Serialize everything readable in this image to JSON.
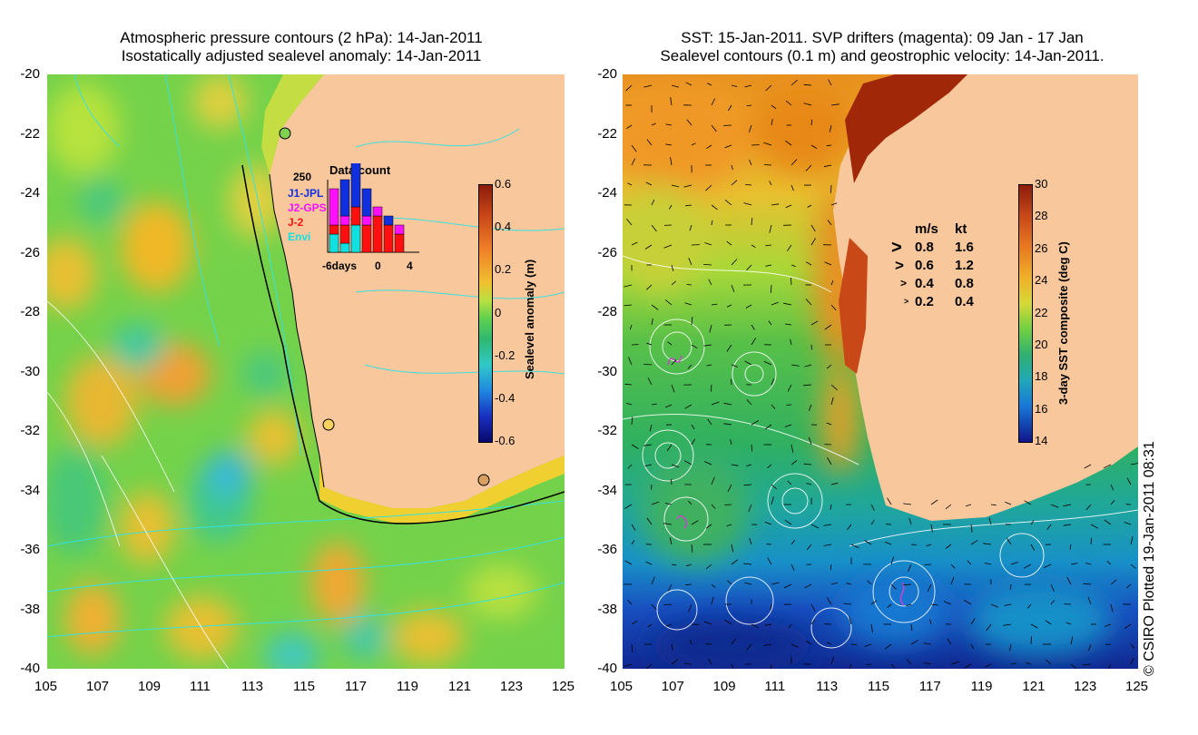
{
  "left_panel": {
    "title_line1": "Atmospheric pressure contours (2 hPa): 14-Jan-2011",
    "title_line2": "Isostatically adjusted sealevel anomaly: 14-Jan-2011",
    "colorbar": {
      "title": "Sealevel anomaly (m)",
      "ticks": [
        "0.6",
        "0.4",
        "0.2",
        "0",
        "-0.2",
        "-0.4",
        "-0.6"
      ]
    },
    "histogram": {
      "title": "Data count",
      "ymax_label": "250",
      "x_left_label": "-6days",
      "x_mid_label": "0",
      "x_right_label": "4",
      "missions": [
        {
          "name": "J1-JPL",
          "color": "#1030e0"
        },
        {
          "name": "J2-GPS",
          "color": "#ff10ff"
        },
        {
          "name": "J-2",
          "color": "#ff1010"
        },
        {
          "name": "Envi",
          "color": "#10e0e0"
        }
      ]
    }
  },
  "right_panel": {
    "title_line1": "SST: 15-Jan-2011. SVP drifters (magenta): 09 Jan - 17 Jan",
    "title_line2": "Sealevel contours (0.1 m) and geostrophic velocity: 14-Jan-2011.",
    "colorbar": {
      "title": "3-day SST composite (deg C)",
      "ticks": [
        "30",
        "28",
        "26",
        "24",
        "22",
        "20",
        "18",
        "16",
        "14"
      ]
    },
    "velocity_legend": {
      "header_ms": "m/s",
      "header_kt": "kt",
      "rows": [
        {
          "ms": "0.8",
          "kt": "1.6"
        },
        {
          "ms": "0.6",
          "kt": "1.2"
        },
        {
          "ms": "0.4",
          "kt": "0.8"
        },
        {
          "ms": "0.2",
          "kt": "0.4"
        }
      ]
    }
  },
  "axes": {
    "x_ticks": [
      "105",
      "107",
      "109",
      "111",
      "113",
      "115",
      "117",
      "119",
      "121",
      "123",
      "125"
    ],
    "y_ticks": [
      "-20",
      "-22",
      "-24",
      "-26",
      "-28",
      "-30",
      "-32",
      "-34",
      "-36",
      "-38",
      "-40"
    ]
  },
  "credit": "© CSIRO Plotted 19-Jan-2011 08:31",
  "colors": {
    "land": "#f8c89c",
    "sla_mid": "#6cd43c",
    "sst_warm": "#e87818"
  }
}
